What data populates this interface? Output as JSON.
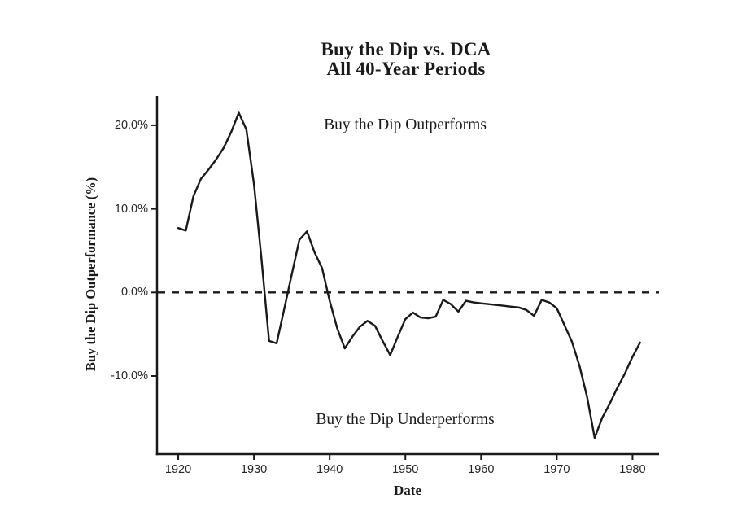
{
  "title": {
    "line1": "Buy the Dip vs. DCA",
    "line2": "All 40-Year Periods"
  },
  "annotations": {
    "above_zero": "Buy the Dip Outperforms",
    "below_zero": "Buy the Dip Underperforms"
  },
  "axes": {
    "x_label": "Date",
    "y_label": "Buy the Dip Outperformance (%)",
    "x_ticks": [
      {
        "value": 1920,
        "label": "1920"
      },
      {
        "value": 1930,
        "label": "1930"
      },
      {
        "value": 1940,
        "label": "1940"
      },
      {
        "value": 1950,
        "label": "1950"
      },
      {
        "value": 1960,
        "label": "1960"
      },
      {
        "value": 1970,
        "label": "1970"
      },
      {
        "value": 1980,
        "label": "1980"
      }
    ],
    "y_ticks": [
      {
        "value": 20,
        "label": "20.0%"
      },
      {
        "value": 10,
        "label": "10.0%"
      },
      {
        "value": 0,
        "label": "0.0%"
      },
      {
        "value": -10,
        "label": "-10.0%"
      }
    ]
  },
  "colors": {
    "line": "#1a1a1a",
    "axis": "#1a1a1a",
    "text": "#1a1a1a",
    "tick_text": "#262626",
    "background": "#ffffff"
  },
  "chart_data": {
    "type": "line",
    "title": "Buy the Dip vs. DCA — All 40-Year Periods",
    "xlabel": "Date",
    "ylabel": "Buy the Dip Outperformance (%)",
    "legend": false,
    "grid": false,
    "zero_reference_line": "dashed",
    "xlim": [
      1917.2,
      1983.5
    ],
    "ylim": [
      -19.35,
      23.5
    ],
    "x": [
      1920,
      1921,
      1922,
      1923,
      1924,
      1925,
      1926,
      1927,
      1928,
      1929,
      1930,
      1931,
      1932,
      1933,
      1934,
      1935,
      1936,
      1937,
      1938,
      1939,
      1940,
      1941,
      1942,
      1943,
      1944,
      1945,
      1946,
      1947,
      1948,
      1949,
      1950,
      1951,
      1952,
      1953,
      1954,
      1955,
      1956,
      1957,
      1958,
      1959,
      1960,
      1961,
      1962,
      1963,
      1964,
      1965,
      1966,
      1967,
      1968,
      1969,
      1970,
      1971,
      1972,
      1973,
      1974,
      1975,
      1976,
      1977,
      1978,
      1979,
      1980,
      1981
    ],
    "values": [
      7.7,
      7.4,
      11.5,
      13.6,
      14.7,
      15.9,
      17.3,
      19.2,
      21.5,
      19.5,
      13.0,
      4.0,
      -5.8,
      -6.1,
      -2.0,
      2.2,
      6.3,
      7.3,
      4.8,
      2.9,
      -1.0,
      -4.3,
      -6.7,
      -5.3,
      -4.1,
      -3.4,
      -4.0,
      -5.8,
      -7.5,
      -5.3,
      -3.2,
      -2.4,
      -3.0,
      -3.1,
      -2.9,
      -0.9,
      -1.4,
      -2.3,
      -1.0,
      -1.2,
      -1.3,
      -1.4,
      -1.5,
      -1.6,
      -1.7,
      -1.8,
      -2.1,
      -2.8,
      -0.9,
      -1.2,
      -1.9,
      -3.9,
      -5.9,
      -8.8,
      -12.5,
      -17.4,
      -15.0,
      -13.3,
      -11.4,
      -9.7,
      -7.7,
      -6.0
    ]
  }
}
